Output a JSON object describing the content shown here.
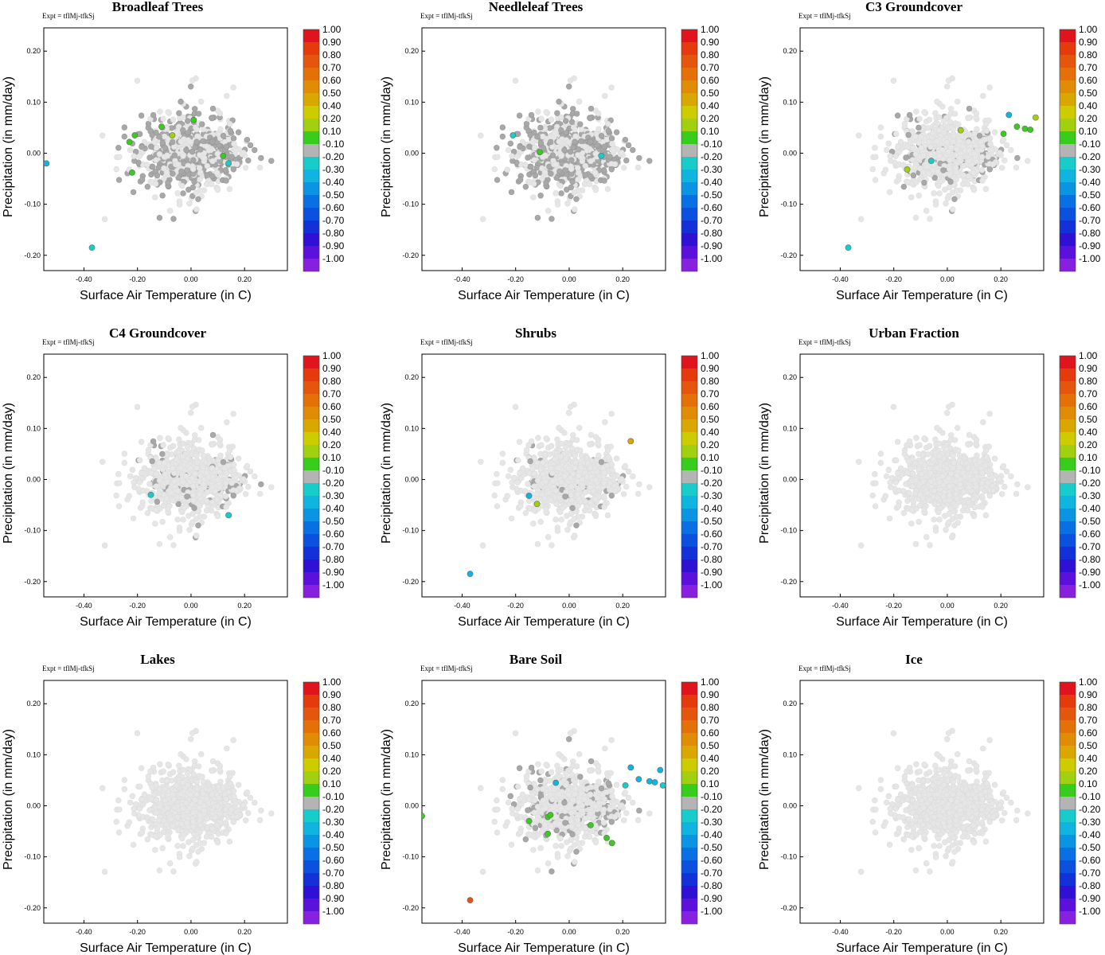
{
  "figure": {
    "expt_label": "Expt = tflMj-tfkSj"
  },
  "chart_data": {
    "type": "scatter",
    "xlabel": "Surface Air Temperature (in C)",
    "ylabel": "Precipitation (in mm/day)",
    "xlim": [
      -0.55,
      0.36
    ],
    "ylim": [
      -0.23,
      0.23
    ],
    "xticks": [
      -0.4,
      -0.2,
      0.0,
      0.2
    ],
    "xtick_labels": [
      "-0.40",
      "-0.20",
      "0.00",
      "0.20"
    ],
    "yticks": [
      -0.2,
      -0.1,
      0.0,
      0.1,
      0.2
    ],
    "ytick_labels": [
      "-0.20",
      "-0.10",
      "0.00",
      "0.10",
      "0.20"
    ],
    "colorbar": {
      "labels": [
        "1.00",
        "0.90",
        "0.80",
        "0.70",
        "0.60",
        "0.50",
        "0.40",
        "0.20",
        "0.10",
        "-0.10",
        "-0.20",
        "-0.30",
        "-0.40",
        "-0.50",
        "-0.60",
        "-0.70",
        "-0.80",
        "-0.90",
        "-1.00"
      ],
      "colors": [
        "#e0141c",
        "#e43a0c",
        "#e4560c",
        "#e47008",
        "#e08c04",
        "#d8a800",
        "#cccc00",
        "#a0d010",
        "#38cc1c",
        "#b4b4b4",
        "#18cccc",
        "#10b4e0",
        "#0c94e4",
        "#0870e4",
        "#0c50e0",
        "#1430d8",
        "#3010d4",
        "#5c10dc",
        "#8820e0"
      ]
    },
    "panels": [
      {
        "title": "Broadleaf Trees",
        "dark_density": 0.55,
        "highlights": [
          {
            "x": -0.54,
            "y": -0.02,
            "color": "#10b4e0"
          },
          {
            "x": -0.37,
            "y": -0.185,
            "color": "#18cccc"
          },
          {
            "x": -0.21,
            "y": 0.035,
            "color": "#38cc1c"
          },
          {
            "x": -0.23,
            "y": 0.022,
            "color": "#38cc1c"
          },
          {
            "x": -0.22,
            "y": -0.038,
            "color": "#38cc1c"
          },
          {
            "x": -0.11,
            "y": 0.052,
            "color": "#38cc1c"
          },
          {
            "x": -0.07,
            "y": 0.035,
            "color": "#a0d010"
          },
          {
            "x": 0.01,
            "y": 0.065,
            "color": "#38cc1c"
          },
          {
            "x": 0.12,
            "y": -0.005,
            "color": "#38cc1c"
          },
          {
            "x": 0.14,
            "y": -0.02,
            "color": "#18cccc"
          }
        ]
      },
      {
        "title": "Needleleaf Trees",
        "dark_density": 0.55,
        "highlights": [
          {
            "x": -0.11,
            "y": 0.002,
            "color": "#38cc1c"
          },
          {
            "x": -0.21,
            "y": 0.035,
            "color": "#18cccc"
          },
          {
            "x": 0.12,
            "y": -0.005,
            "color": "#18cccc"
          }
        ]
      },
      {
        "title": "C3 Groundcover",
        "dark_density": 0.12,
        "highlights": [
          {
            "x": -0.37,
            "y": -0.185,
            "color": "#18cccc"
          },
          {
            "x": -0.15,
            "y": -0.032,
            "color": "#a0d010"
          },
          {
            "x": -0.06,
            "y": -0.015,
            "color": "#18cccc"
          },
          {
            "x": 0.05,
            "y": 0.045,
            "color": "#a0d010"
          },
          {
            "x": 0.23,
            "y": 0.075,
            "color": "#10b4e0"
          },
          {
            "x": 0.26,
            "y": 0.052,
            "color": "#38cc1c"
          },
          {
            "x": 0.29,
            "y": 0.048,
            "color": "#38cc1c"
          },
          {
            "x": 0.31,
            "y": 0.046,
            "color": "#38cc1c"
          },
          {
            "x": 0.33,
            "y": 0.07,
            "color": "#a0d010"
          },
          {
            "x": 0.21,
            "y": 0.038,
            "color": "#38cc1c"
          }
        ]
      },
      {
        "title": "C4 Groundcover",
        "dark_density": 0.1,
        "highlights": [
          {
            "x": -0.15,
            "y": -0.03,
            "color": "#18cccc"
          },
          {
            "x": 0.14,
            "y": -0.07,
            "color": "#18cccc"
          }
        ]
      },
      {
        "title": "Shrubs",
        "dark_density": 0.05,
        "highlights": [
          {
            "x": -0.37,
            "y": -0.185,
            "color": "#10b4e0"
          },
          {
            "x": -0.15,
            "y": -0.032,
            "color": "#10b4e0"
          },
          {
            "x": -0.12,
            "y": -0.048,
            "color": "#a0d010"
          },
          {
            "x": 0.23,
            "y": 0.075,
            "color": "#d8a800"
          }
        ]
      },
      {
        "title": "Urban Fraction",
        "dark_density": 0.0,
        "highlights": []
      },
      {
        "title": "Lakes",
        "dark_density": 0.0,
        "highlights": []
      },
      {
        "title": "Bare Soil",
        "dark_density": 0.16,
        "highlights": [
          {
            "x": -0.37,
            "y": -0.185,
            "color": "#e4560c"
          },
          {
            "x": -0.55,
            "y": -0.02,
            "color": "#38cc1c"
          },
          {
            "x": -0.15,
            "y": -0.03,
            "color": "#38cc1c"
          },
          {
            "x": -0.08,
            "y": -0.022,
            "color": "#38cc1c"
          },
          {
            "x": -0.07,
            "y": -0.018,
            "color": "#38cc1c"
          },
          {
            "x": -0.08,
            "y": -0.055,
            "color": "#38cc1c"
          },
          {
            "x": 0.08,
            "y": -0.038,
            "color": "#38cc1c"
          },
          {
            "x": 0.14,
            "y": -0.063,
            "color": "#38cc1c"
          },
          {
            "x": 0.16,
            "y": -0.073,
            "color": "#38cc1c"
          },
          {
            "x": -0.05,
            "y": 0.045,
            "color": "#10b4e0"
          },
          {
            "x": 0.21,
            "y": 0.04,
            "color": "#18cccc"
          },
          {
            "x": 0.23,
            "y": 0.075,
            "color": "#10b4e0"
          },
          {
            "x": 0.26,
            "y": 0.052,
            "color": "#10b4e0"
          },
          {
            "x": 0.3,
            "y": 0.048,
            "color": "#10b4e0"
          },
          {
            "x": 0.32,
            "y": 0.046,
            "color": "#10b4e0"
          },
          {
            "x": 0.35,
            "y": 0.04,
            "color": "#18cccc"
          },
          {
            "x": 0.34,
            "y": 0.07,
            "color": "#10b4e0"
          }
        ]
      },
      {
        "title": "Ice",
        "dark_density": 0.0,
        "highlights": []
      }
    ]
  }
}
